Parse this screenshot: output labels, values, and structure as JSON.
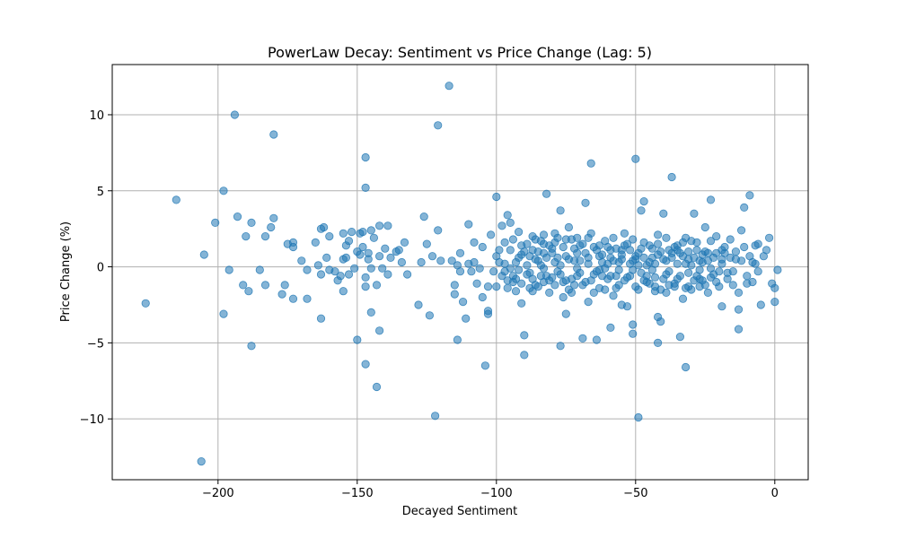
{
  "chart_data": {
    "type": "scatter",
    "title": "PowerLaw Decay: Sentiment vs Price Change (Lag: 5)",
    "xlabel": "Decayed Sentiment",
    "ylabel": "Price Change (%)",
    "xlim": [
      -238,
      12
    ],
    "ylim": [
      -14.0,
      13.3
    ],
    "xticks": [
      -200,
      -150,
      -100,
      -50,
      0
    ],
    "xtick_labels": [
      "−200",
      "−150",
      "−100",
      "−50",
      "0"
    ],
    "yticks": [
      -10,
      -5,
      0,
      5,
      10
    ],
    "ytick_labels": [
      "−10",
      "−5",
      "0",
      "5",
      "10"
    ],
    "grid": true,
    "marker_color": "#1f77b4",
    "marker_alpha": 0.55,
    "points": [
      [
        -226,
        -2.4
      ],
      [
        -215,
        4.4
      ],
      [
        -206,
        -12.8
      ],
      [
        -205,
        0.8
      ],
      [
        -201,
        2.9
      ],
      [
        -198,
        5.0
      ],
      [
        -198,
        -3.1
      ],
      [
        -196,
        -0.2
      ],
      [
        -194,
        10.0
      ],
      [
        -193,
        3.3
      ],
      [
        -191,
        -1.2
      ],
      [
        -190,
        2.0
      ],
      [
        -189,
        -1.6
      ],
      [
        -188,
        2.9
      ],
      [
        -188,
        -5.2
      ],
      [
        -185,
        -0.2
      ],
      [
        -183,
        2.0
      ],
      [
        -183,
        -1.2
      ],
      [
        -181,
        2.6
      ],
      [
        -180,
        3.2
      ],
      [
        -180,
        8.7
      ],
      [
        -177,
        -1.8
      ],
      [
        -176,
        -1.2
      ],
      [
        -175,
        1.5
      ],
      [
        -173,
        1.3
      ],
      [
        -173,
        1.6
      ],
      [
        -173,
        -2.1
      ],
      [
        -170,
        0.4
      ],
      [
        -168,
        -0.2
      ],
      [
        -168,
        -2.1
      ],
      [
        -165,
        1.6
      ],
      [
        -164,
        0.1
      ],
      [
        -163,
        2.5
      ],
      [
        -163,
        -0.5
      ],
      [
        -163,
        -3.4
      ],
      [
        -162,
        2.6
      ],
      [
        -161,
        0.6
      ],
      [
        -160,
        -0.2
      ],
      [
        -160,
        2.0
      ],
      [
        -158,
        -0.3
      ],
      [
        -157,
        -0.9
      ],
      [
        -156,
        -0.6
      ],
      [
        -155,
        0.5
      ],
      [
        -155,
        2.2
      ],
      [
        -155,
        -1.6
      ],
      [
        -154,
        0.6
      ],
      [
        -154,
        1.4
      ],
      [
        -153,
        -0.5
      ],
      [
        -153,
        1.7
      ],
      [
        -152,
        2.3
      ],
      [
        -151,
        -0.1
      ],
      [
        -150,
        1.0
      ],
      [
        -150,
        -4.8
      ],
      [
        -149,
        2.2
      ],
      [
        -149,
        0.8
      ],
      [
        -148,
        1.3
      ],
      [
        -148,
        2.3
      ],
      [
        -147,
        -0.7
      ],
      [
        -147,
        -1.3
      ],
      [
        -147,
        -6.4
      ],
      [
        -147,
        7.2
      ],
      [
        -147,
        5.2
      ],
      [
        -146,
        0.9
      ],
      [
        -146,
        0.5
      ],
      [
        -145,
        2.4
      ],
      [
        -145,
        -3.0
      ],
      [
        -145,
        -0.1
      ],
      [
        -144,
        1.9
      ],
      [
        -143,
        -1.2
      ],
      [
        -143,
        -7.9
      ],
      [
        -142,
        0.7
      ],
      [
        -142,
        2.7
      ],
      [
        -142,
        -4.2
      ],
      [
        -141,
        -0.1
      ],
      [
        -140,
        1.2
      ],
      [
        -139,
        -0.5
      ],
      [
        -139,
        2.7
      ],
      [
        -138,
        0.6
      ],
      [
        -136,
        1.0
      ],
      [
        -135,
        1.1
      ],
      [
        -134,
        0.3
      ],
      [
        -133,
        1.6
      ],
      [
        -132,
        -0.5
      ],
      [
        -128,
        -2.5
      ],
      [
        -127,
        0.3
      ],
      [
        -126,
        3.3
      ],
      [
        -125,
        1.5
      ],
      [
        -124,
        -3.2
      ],
      [
        -123,
        0.7
      ],
      [
        -122,
        -9.8
      ],
      [
        -121,
        2.4
      ],
      [
        -121,
        9.3
      ],
      [
        -120,
        0.4
      ],
      [
        -117,
        11.9
      ],
      [
        -116,
        0.4
      ],
      [
        -115,
        -1.2
      ],
      [
        -115,
        -1.8
      ],
      [
        -114,
        -4.8
      ],
      [
        -114,
        0.1
      ],
      [
        -113,
        -0.3
      ],
      [
        -113,
        0.9
      ],
      [
        -112,
        -2.3
      ],
      [
        -111,
        -3.4
      ],
      [
        -110,
        2.8
      ],
      [
        -110,
        0.2
      ],
      [
        -109,
        -0.3
      ],
      [
        -108,
        1.6
      ],
      [
        -108,
        0.3
      ],
      [
        -107,
        -1.1
      ],
      [
        -106,
        -0.1
      ],
      [
        -105,
        1.3
      ],
      [
        -105,
        -2.0
      ],
      [
        -104,
        -6.5
      ],
      [
        -103,
        -1.3
      ],
      [
        -103,
        -2.9
      ],
      [
        -103,
        -3.1
      ],
      [
        -102,
        2.1
      ],
      [
        -101,
        -0.3
      ],
      [
        -100,
        4.6
      ],
      [
        -100,
        0.7
      ],
      [
        -99,
        1.1
      ],
      [
        -98,
        -0.6
      ],
      [
        -97,
        0.2
      ],
      [
        -96,
        -1.4
      ],
      [
        -95,
        -0.1
      ],
      [
        -94,
        -1.0
      ],
      [
        -93,
        0.3
      ],
      [
        -92,
        0.6
      ],
      [
        -91,
        -2.4
      ],
      [
        -90,
        -5.8
      ],
      [
        -90,
        -4.5
      ],
      [
        -89,
        0.1
      ],
      [
        -88,
        -1.4
      ],
      [
        -87,
        -0.8
      ],
      [
        -86,
        0.5
      ],
      [
        -85,
        1.0
      ],
      [
        -84,
        -0.6
      ],
      [
        -83,
        2.1
      ],
      [
        -83,
        -1.0
      ],
      [
        -82,
        4.8
      ],
      [
        -81,
        -1.7
      ],
      [
        -80,
        0.9
      ],
      [
        -79,
        2.2
      ],
      [
        -78,
        -0.3
      ],
      [
        -77,
        -5.2
      ],
      [
        -77,
        3.7
      ],
      [
        -76,
        -2.0
      ],
      [
        -75,
        -3.1
      ],
      [
        -74,
        2.6
      ],
      [
        -73,
        -1.7
      ],
      [
        -72,
        1.2
      ],
      [
        -71,
        -0.6
      ],
      [
        -70,
        0.4
      ],
      [
        -69,
        -4.7
      ],
      [
        -68,
        4.2
      ],
      [
        -67,
        -2.3
      ],
      [
        -66,
        6.8
      ],
      [
        -65,
        1.3
      ],
      [
        -64,
        -4.8
      ],
      [
        -63,
        -0.2
      ],
      [
        -62,
        0.8
      ],
      [
        -61,
        -1.5
      ],
      [
        -60,
        0.2
      ],
      [
        -59,
        -4.0
      ],
      [
        -58,
        1.9
      ],
      [
        -57,
        -0.6
      ],
      [
        -56,
        0.3
      ],
      [
        -55,
        -2.5
      ],
      [
        -54,
        2.2
      ],
      [
        -53,
        -2.6
      ],
      [
        -52,
        1.1
      ],
      [
        -51,
        -4.4
      ],
      [
        -51,
        -3.8
      ],
      [
        -50,
        7.1
      ],
      [
        -50,
        0.7
      ],
      [
        -49,
        -9.9
      ],
      [
        -49,
        -1.5
      ],
      [
        -48,
        3.7
      ],
      [
        -47,
        4.3
      ],
      [
        -46,
        0.1
      ],
      [
        -45,
        -1.1
      ],
      [
        -44,
        0.6
      ],
      [
        -43,
        -1.6
      ],
      [
        -42,
        2.1
      ],
      [
        -42,
        -3.3
      ],
      [
        -42,
        -5.0
      ],
      [
        -41,
        -3.6
      ],
      [
        -40,
        3.5
      ],
      [
        -39,
        -0.5
      ],
      [
        -38,
        1.1
      ],
      [
        -37,
        5.9
      ],
      [
        -36,
        -1.3
      ],
      [
        -35,
        0.2
      ],
      [
        -34,
        -4.6
      ],
      [
        -33,
        -2.1
      ],
      [
        -32,
        1.9
      ],
      [
        -32,
        -6.6
      ],
      [
        -31,
        0.5
      ],
      [
        -30,
        -1.5
      ],
      [
        -29,
        3.5
      ],
      [
        -28,
        1.1
      ],
      [
        -27,
        -0.8
      ],
      [
        -26,
        0.3
      ],
      [
        -25,
        2.6
      ],
      [
        -24,
        -1.7
      ],
      [
        -23,
        4.4
      ],
      [
        -22,
        0.6
      ],
      [
        -21,
        2.0
      ],
      [
        -20,
        -0.3
      ],
      [
        -19,
        -2.6
      ],
      [
        -18,
        0.9
      ],
      [
        -17,
        -0.4
      ],
      [
        -16,
        1.8
      ],
      [
        -15,
        -1.2
      ],
      [
        -14,
        0.5
      ],
      [
        -13,
        -2.8
      ],
      [
        -13,
        -4.1
      ],
      [
        -12,
        2.4
      ],
      [
        -11,
        3.9
      ],
      [
        -10,
        -1.1
      ],
      [
        -9,
        4.7
      ],
      [
        -8,
        0.3
      ],
      [
        -7,
        1.4
      ],
      [
        -6,
        -0.3
      ],
      [
        -5,
        -2.5
      ],
      [
        -4,
        0.7
      ],
      [
        -3,
        1.1
      ],
      [
        -2,
        1.9
      ],
      [
        -1,
        -1.1
      ],
      [
        0,
        -1.4
      ],
      [
        0,
        -2.3
      ],
      [
        1,
        -0.2
      ],
      [
        -98,
        2.7
      ],
      [
        -96,
        3.4
      ],
      [
        -94,
        1.8
      ],
      [
        -93,
        -0.8
      ],
      [
        -92,
        2.3
      ],
      [
        -91,
        0.8
      ],
      [
        -89,
        1.5
      ],
      [
        -88,
        -0.4
      ],
      [
        -87,
        1.1
      ],
      [
        -86,
        -1.2
      ],
      [
        -85,
        0.4
      ],
      [
        -84,
        1.7
      ],
      [
        -83,
        -0.1
      ],
      [
        -82,
        0.6
      ],
      [
        -81,
        1.4
      ],
      [
        -80,
        -0.7
      ],
      [
        -79,
        0.3
      ],
      [
        -78,
        1.9
      ],
      [
        -77,
        0.1
      ],
      [
        -76,
        1.3
      ],
      [
        -75,
        -0.9
      ],
      [
        -74,
        0.5
      ],
      [
        -73,
        1.8
      ],
      [
        -72,
        -1.2
      ],
      [
        -71,
        0.9
      ],
      [
        -70,
        -0.4
      ],
      [
        -69,
        1.5
      ],
      [
        -68,
        -1.0
      ],
      [
        -67,
        0.6
      ],
      [
        -66,
        2.2
      ],
      [
        -65,
        -0.5
      ],
      [
        -64,
        1.1
      ],
      [
        -63,
        -1.4
      ],
      [
        -62,
        0.3
      ],
      [
        -61,
        1.7
      ],
      [
        -60,
        -0.8
      ],
      [
        -59,
        0.6
      ],
      [
        -58,
        -1.9
      ],
      [
        -57,
        1.2
      ],
      [
        -56,
        -0.2
      ],
      [
        -55,
        0.8
      ],
      [
        -54,
        -0.9
      ],
      [
        -53,
        1.5
      ],
      [
        -52,
        -0.6
      ],
      [
        -51,
        0.4
      ],
      [
        -50,
        -1.3
      ],
      [
        -49,
        0.9
      ],
      [
        -48,
        -0.4
      ],
      [
        -47,
        1.6
      ],
      [
        -46,
        -1.0
      ],
      [
        -45,
        0.3
      ],
      [
        -44,
        1.2
      ],
      [
        -43,
        -0.7
      ],
      [
        -42,
        0.8
      ],
      [
        -41,
        -1.5
      ],
      [
        -40,
        0.5
      ],
      [
        -39,
        1.9
      ],
      [
        -38,
        -0.3
      ],
      [
        -37,
        0.9
      ],
      [
        -36,
        -1.1
      ],
      [
        -35,
        1.4
      ],
      [
        -34,
        -0.6
      ],
      [
        -33,
        0.7
      ],
      [
        -32,
        -1.4
      ],
      [
        -31,
        1.0
      ],
      [
        -30,
        0.1
      ],
      [
        -29,
        -0.9
      ],
      [
        -28,
        1.6
      ],
      [
        -27,
        -0.2
      ],
      [
        -26,
        0.8
      ],
      [
        -25,
        -1.2
      ],
      [
        -24,
        0.4
      ],
      [
        -23,
        1.7
      ],
      [
        -22,
        -0.5
      ],
      [
        -21,
        0.9
      ],
      [
        -20,
        -1.3
      ],
      [
        -19,
        0.2
      ],
      [
        -18,
        1.3
      ],
      [
        -17,
        -0.8
      ],
      [
        -16,
        0.6
      ],
      [
        -15,
        -0.3
      ],
      [
        -14,
        1.0
      ],
      [
        -13,
        -1.7
      ],
      [
        -12,
        0.4
      ],
      [
        -11,
        1.3
      ],
      [
        -10,
        -0.6
      ],
      [
        -9,
        0.7
      ],
      [
        -8,
        -1.0
      ],
      [
        -7,
        0.2
      ],
      [
        -6,
        1.5
      ],
      [
        -97,
        -0.3
      ],
      [
        -95,
        1.1
      ],
      [
        -93,
        -1.6
      ],
      [
        -91,
        1.4
      ],
      [
        -89,
        -0.5
      ],
      [
        -87,
        2.0
      ],
      [
        -85,
        -1.3
      ],
      [
        -83,
        0.9
      ],
      [
        -81,
        -0.9
      ],
      [
        -79,
        1.6
      ],
      [
        -77,
        -0.5
      ],
      [
        -75,
        0.7
      ],
      [
        -73,
        -0.8
      ],
      [
        -71,
        1.9
      ],
      [
        -69,
        -1.2
      ],
      [
        -67,
        0.2
      ],
      [
        -65,
        -1.7
      ],
      [
        -63,
        1.4
      ],
      [
        -61,
        -0.1
      ],
      [
        -59,
        1.1
      ],
      [
        -57,
        -1.4
      ],
      [
        -55,
        0.5
      ],
      [
        -53,
        -0.7
      ],
      [
        -51,
        1.8
      ],
      [
        -49,
        0.1
      ],
      [
        -47,
        -0.9
      ],
      [
        -45,
        1.4
      ],
      [
        -43,
        0.2
      ],
      [
        -41,
        1.0
      ],
      [
        -39,
        -1.7
      ],
      [
        -37,
        0.6
      ],
      [
        -35,
        -0.8
      ],
      [
        -33,
        1.6
      ],
      [
        -31,
        -0.4
      ],
      [
        -29,
        0.6
      ],
      [
        -27,
        -1.3
      ],
      [
        -25,
        1.0
      ],
      [
        -23,
        -0.1
      ],
      [
        -21,
        -1.0
      ],
      [
        -19,
        1.1
      ],
      [
        -99,
        0.3
      ],
      [
        -96,
        -0.9
      ],
      [
        -92,
        -0.2
      ],
      [
        -88,
        0.7
      ],
      [
        -84,
        0.1
      ],
      [
        -80,
        1.2
      ],
      [
        -76,
        -1.0
      ],
      [
        -72,
        0.4
      ],
      [
        -68,
        0.9
      ],
      [
        -64,
        -0.3
      ],
      [
        -60,
        1.3
      ],
      [
        -56,
        -1.2
      ],
      [
        -52,
        0.2
      ],
      [
        -48,
        1.2
      ],
      [
        -44,
        -0.2
      ],
      [
        -40,
        -0.8
      ],
      [
        -36,
        1.3
      ],
      [
        -32,
        0.2
      ],
      [
        -28,
        -0.6
      ],
      [
        -24,
        0.9
      ],
      [
        -100,
        -1.3
      ],
      [
        -97,
        1.6
      ],
      [
        -94,
        -0.6
      ],
      [
        -90,
        1.0
      ],
      [
        -86,
        1.8
      ],
      [
        -82,
        -0.6
      ],
      [
        -78,
        0.6
      ],
      [
        -74,
        -1.5
      ],
      [
        -70,
        1.4
      ],
      [
        -66,
        -0.9
      ],
      [
        -62,
        -0.6
      ],
      [
        -58,
        0.4
      ],
      [
        -54,
        1.4
      ],
      [
        -50,
        0.5
      ],
      [
        -46,
        -0.6
      ],
      [
        -42,
        1.5
      ],
      [
        -38,
        -1.2
      ],
      [
        -34,
        0.9
      ],
      [
        -30,
        1.7
      ],
      [
        -26,
        -0.9
      ],
      [
        -95,
        2.9
      ],
      [
        -91,
        -1.1
      ],
      [
        -87,
        -1.6
      ],
      [
        -83,
        1.5
      ],
      [
        -79,
        -1.2
      ],
      [
        -75,
        1.8
      ],
      [
        -71,
        -0.1
      ],
      [
        -67,
        1.9
      ],
      [
        -63,
        0.7
      ],
      [
        -59,
        -0.6
      ],
      [
        -55,
        1.1
      ],
      [
        -51,
        -0.2
      ],
      [
        -47,
        0.6
      ],
      [
        -43,
        -1.3
      ],
      [
        -39,
        0.4
      ],
      [
        -35,
        1.1
      ],
      [
        -31,
        -1.3
      ],
      [
        -27,
        0.4
      ],
      [
        -23,
        -0.7
      ],
      [
        -19,
        0.5
      ]
    ]
  }
}
